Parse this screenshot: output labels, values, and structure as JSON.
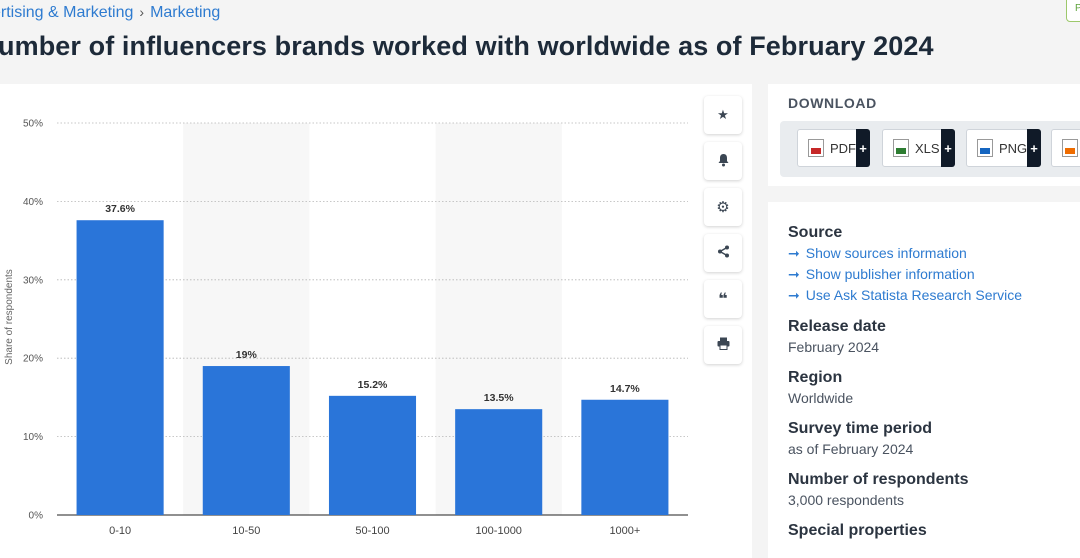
{
  "breadcrumb": {
    "items": [
      "ertising & Marketing",
      "Marketing"
    ],
    "separator": "›"
  },
  "title": "umber of influencers brands worked with worldwide as of February 2024",
  "premium_badge": "P",
  "toolbar": {
    "icons": [
      "star-icon",
      "bell-icon",
      "gear-icon",
      "share-icon",
      "quote-icon",
      "print-icon"
    ],
    "glyphs": [
      "★",
      "🔔",
      "⚙",
      "⋖",
      "❝",
      "⎙"
    ]
  },
  "download": {
    "heading": "DOWNLOAD",
    "buttons": [
      {
        "label": "PDF",
        "color": "#c62828"
      },
      {
        "label": "XLS",
        "color": "#2e7d32"
      },
      {
        "label": "PNG",
        "color": "#1565c0"
      },
      {
        "label": "",
        "color": "#ef6c00"
      }
    ],
    "plus": "+"
  },
  "info": {
    "source_heading": "Source",
    "source_links": [
      "Show sources information",
      "Show publisher information",
      "Use Ask Statista Research Service"
    ],
    "arrow": "➞",
    "release_heading": "Release date",
    "release_value": "February 2024",
    "region_heading": "Region",
    "region_value": "Worldwide",
    "survey_heading": "Survey time period",
    "survey_value": "as of February 2024",
    "respondents_heading": "Number of respondents",
    "respondents_value": "3,000 respondents",
    "special_heading": "Special properties"
  },
  "chart_data": {
    "type": "bar",
    "categories": [
      "0-10",
      "10-50",
      "50-100",
      "100-1000",
      "1000+"
    ],
    "values": [
      37.6,
      19,
      15.2,
      13.5,
      14.7
    ],
    "data_labels": [
      "37.6%",
      "19%",
      "15.2%",
      "13.5%",
      "14.7%"
    ],
    "ylabel": "Share of respondents",
    "ylim": [
      0,
      50
    ],
    "yticks": [
      0,
      10,
      20,
      30,
      40,
      50
    ],
    "ytick_labels": [
      "0%",
      "10%",
      "20%",
      "30%",
      "40%",
      "50%"
    ],
    "bar_color": "#2a75d9",
    "grid": true,
    "alternate_band_color": "#f7f7f7"
  }
}
